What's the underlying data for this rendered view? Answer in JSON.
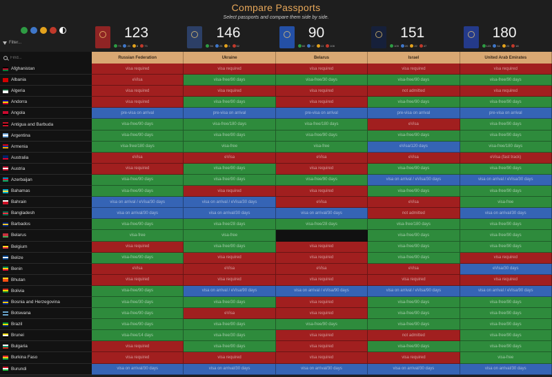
{
  "header": {
    "title": "Compare Passports",
    "subtitle": "Select passports and compare them side by side."
  },
  "theme_dots": [
    {
      "name": "green-theme-dot",
      "color": "#2e9b43"
    },
    {
      "name": "blue-theme-dot",
      "color": "#3f77c9"
    },
    {
      "name": "orange-theme-dot",
      "color": "#e3a21d"
    },
    {
      "name": "red-theme-dot",
      "color": "#c0392b"
    }
  ],
  "filter": {
    "label": "Filter..."
  },
  "find": {
    "placeholder": "Find..."
  },
  "colors": {
    "visa-free": "#2e8b3c",
    "visa-required": "#a11f1f",
    "visa-on-arrival": "#3564b5",
    "self": "#111111"
  },
  "passports": [
    {
      "country": "Russian Federation",
      "score": "123",
      "book_color": "#8f2424",
      "stats": [
        "73",
        "20",
        "8",
        "73"
      ]
    },
    {
      "country": "Ukraine",
      "score": "146",
      "book_color": "#2c3f66",
      "stats": [
        "94",
        "25",
        "5",
        "52"
      ]
    },
    {
      "country": "Belarus",
      "score": "90",
      "book_color": "#2450a6",
      "stats": [
        "60",
        "17",
        "13",
        "108"
      ]
    },
    {
      "country": "Israel",
      "score": "151",
      "book_color": "#16203a",
      "stats": [
        "109",
        "20",
        "22",
        "47"
      ]
    },
    {
      "country": "United Arab Emirates",
      "score": "180",
      "book_color": "#243a8a",
      "stats": [
        "123",
        "34",
        "23",
        "18"
      ]
    }
  ],
  "rows": [
    {
      "country": "Afghanistan",
      "flag": [
        "#000000",
        "#c8102e",
        "#007a36"
      ],
      "cells": [
        [
          "visa required",
          "r"
        ],
        [
          "visa required",
          "r"
        ],
        [
          "visa required",
          "r"
        ],
        [
          "visa required",
          "r"
        ],
        [
          "visa required",
          "r"
        ]
      ]
    },
    {
      "country": "Albania",
      "flag": [
        "#d20000",
        "#d20000",
        "#d20000"
      ],
      "cells": [
        [
          "eVisa",
          "r"
        ],
        [
          "visa-free/90 days",
          "g"
        ],
        [
          "visa-free/30 days",
          "g"
        ],
        [
          "visa-free/90 days",
          "g"
        ],
        [
          "visa-free/90 days",
          "g"
        ]
      ]
    },
    {
      "country": "Algeria",
      "flag": [
        "#006233",
        "#ffffff",
        "#ffffff"
      ],
      "cells": [
        [
          "visa required",
          "r"
        ],
        [
          "visa required",
          "r"
        ],
        [
          "visa required",
          "r"
        ],
        [
          "not admitted",
          "r"
        ],
        [
          "visa required",
          "r"
        ]
      ]
    },
    {
      "country": "Andorra",
      "flag": [
        "#10069f",
        "#fedd00",
        "#d50032"
      ],
      "cells": [
        [
          "visa required",
          "r"
        ],
        [
          "visa-free/90 days",
          "g"
        ],
        [
          "visa required",
          "r"
        ],
        [
          "visa-free/90 days",
          "g"
        ],
        [
          "visa-free/90 days",
          "g"
        ]
      ]
    },
    {
      "country": "Angola",
      "flag": [
        "#cc092f",
        "#cc092f",
        "#000000"
      ],
      "cells": [
        [
          "pre-visa on arrival",
          "b"
        ],
        [
          "pre-visa on arrival",
          "b"
        ],
        [
          "pre-visa on arrival",
          "b"
        ],
        [
          "pre-visa on arrival",
          "b"
        ],
        [
          "pre-visa on arrival",
          "b"
        ]
      ]
    },
    {
      "country": "Antigua and Barbuda",
      "flag": [
        "#ce1126",
        "#000000",
        "#ce1126"
      ],
      "cells": [
        [
          "visa-free/90 days",
          "g"
        ],
        [
          "visa-free/180 days",
          "g"
        ],
        [
          "visa-free/180 days",
          "g"
        ],
        [
          "eVisa",
          "r"
        ],
        [
          "visa-free/90 days",
          "g"
        ]
      ]
    },
    {
      "country": "Argentina",
      "flag": [
        "#74acdf",
        "#ffffff",
        "#74acdf"
      ],
      "cells": [
        [
          "visa-free/90 days",
          "g"
        ],
        [
          "visa-free/90 days",
          "g"
        ],
        [
          "visa-free/90 days",
          "g"
        ],
        [
          "visa-free/90 days",
          "g"
        ],
        [
          "visa-free/90 days",
          "g"
        ]
      ]
    },
    {
      "country": "Armenia",
      "flag": [
        "#d90012",
        "#0033a0",
        "#f2a800"
      ],
      "cells": [
        [
          "visa-free/180 days",
          "g"
        ],
        [
          "visa-free",
          "g"
        ],
        [
          "visa-free",
          "g"
        ],
        [
          "eVisa/120 days",
          "b"
        ],
        [
          "visa-free/180 days",
          "g"
        ]
      ]
    },
    {
      "country": "Australia",
      "flag": [
        "#012169",
        "#012169",
        "#e4002b"
      ],
      "cells": [
        [
          "eVisa",
          "r"
        ],
        [
          "eVisa",
          "r"
        ],
        [
          "eVisa",
          "r"
        ],
        [
          "eVisa",
          "r"
        ],
        [
          "eVisa (fast track)",
          "r"
        ]
      ]
    },
    {
      "country": "Austria",
      "flag": [
        "#c8102e",
        "#ffffff",
        "#c8102e"
      ],
      "cells": [
        [
          "visa required",
          "r"
        ],
        [
          "visa-free/90 days",
          "g"
        ],
        [
          "visa required",
          "r"
        ],
        [
          "visa-free/90 days",
          "g"
        ],
        [
          "visa-free/90 days",
          "g"
        ]
      ]
    },
    {
      "country": "Azerbaijan",
      "flag": [
        "#0092bc",
        "#e4002b",
        "#00af66"
      ],
      "cells": [
        [
          "visa-free/90 days",
          "g"
        ],
        [
          "visa-free/90 days",
          "g"
        ],
        [
          "visa-free/90 days",
          "g"
        ],
        [
          "visa on arrival / eVisa/30 days",
          "b"
        ],
        [
          "visa on arrival / eVisa/30 days",
          "b"
        ]
      ]
    },
    {
      "country": "Bahamas",
      "flag": [
        "#00abc9",
        "#fae042",
        "#00abc9"
      ],
      "cells": [
        [
          "visa-free/90 days",
          "g"
        ],
        [
          "visa required",
          "r"
        ],
        [
          "visa required",
          "r"
        ],
        [
          "visa-free/90 days",
          "g"
        ],
        [
          "visa-free/90 days",
          "g"
        ]
      ]
    },
    {
      "country": "Bahrain",
      "flag": [
        "#ffffff",
        "#ce1126",
        "#ce1126"
      ],
      "cells": [
        [
          "visa on arrival / eVisa/30 days",
          "b"
        ],
        [
          "visa on arrival / eVisa/30 days",
          "b"
        ],
        [
          "eVisa",
          "r"
        ],
        [
          "eVisa",
          "r"
        ],
        [
          "visa-free",
          "g"
        ]
      ]
    },
    {
      "country": "Bangladesh",
      "flag": [
        "#006a4e",
        "#f42a41",
        "#006a4e"
      ],
      "cells": [
        [
          "visa on arrival/30 days",
          "b"
        ],
        [
          "visa on arrival/30 days",
          "b"
        ],
        [
          "visa on arrival/30 days",
          "b"
        ],
        [
          "not admitted",
          "r"
        ],
        [
          "visa on arrival/30 days",
          "b"
        ]
      ]
    },
    {
      "country": "Barbados",
      "flag": [
        "#00267f",
        "#ffc726",
        "#00267f"
      ],
      "cells": [
        [
          "visa-free/90 days",
          "g"
        ],
        [
          "visa-free/28 days",
          "g"
        ],
        [
          "visa-free/28 days",
          "g"
        ],
        [
          "visa-free/180 days",
          "g"
        ],
        [
          "visa-free/90 days",
          "g"
        ]
      ]
    },
    {
      "country": "Belarus",
      "flag": [
        "#c8313e",
        "#c8313e",
        "#4aa657"
      ],
      "cells": [
        [
          "visa-free",
          "g"
        ],
        [
          "visa-free",
          "g"
        ],
        [
          "",
          "s"
        ],
        [
          "visa-free/90 days",
          "g"
        ],
        [
          "visa-free/90 days",
          "g"
        ]
      ]
    },
    {
      "country": "Belgium",
      "flag": [
        "#000000",
        "#fdda24",
        "#ef3340"
      ],
      "cells": [
        [
          "visa required",
          "r"
        ],
        [
          "visa-free/90 days",
          "g"
        ],
        [
          "visa required",
          "r"
        ],
        [
          "visa-free/90 days",
          "g"
        ],
        [
          "visa-free/90 days",
          "g"
        ]
      ]
    },
    {
      "country": "Belize",
      "flag": [
        "#003f87",
        "#ffffff",
        "#003f87"
      ],
      "cells": [
        [
          "visa-free/90 days",
          "g"
        ],
        [
          "visa required",
          "r"
        ],
        [
          "visa required",
          "r"
        ],
        [
          "visa-free/90 days",
          "g"
        ],
        [
          "visa required",
          "r"
        ]
      ]
    },
    {
      "country": "Benin",
      "flag": [
        "#008751",
        "#fcd116",
        "#e8112d"
      ],
      "cells": [
        [
          "eVisa",
          "r"
        ],
        [
          "eVisa",
          "r"
        ],
        [
          "eVisa",
          "r"
        ],
        [
          "eVisa",
          "r"
        ],
        [
          "eVisa/30 days",
          "b"
        ]
      ]
    },
    {
      "country": "Bhutan",
      "flag": [
        "#ffd520",
        "#ff4e12",
        "#ff4e12"
      ],
      "cells": [
        [
          "visa required",
          "r"
        ],
        [
          "visa required",
          "r"
        ],
        [
          "visa required",
          "r"
        ],
        [
          "visa required",
          "r"
        ],
        [
          "visa required",
          "r"
        ]
      ]
    },
    {
      "country": "Bolivia",
      "flag": [
        "#d52b1e",
        "#f9e300",
        "#007934"
      ],
      "cells": [
        [
          "visa-free/90 days",
          "g"
        ],
        [
          "visa on arrival / eVisa/90 days",
          "b"
        ],
        [
          "visa on arrival / eVisa/90 days",
          "b"
        ],
        [
          "visa on arrival / eVisa/90 days",
          "b"
        ],
        [
          "visa on arrival / eVisa/90 days",
          "b"
        ]
      ]
    },
    {
      "country": "Bosnia and Herzegovina",
      "flag": [
        "#002395",
        "#fecb00",
        "#002395"
      ],
      "cells": [
        [
          "visa-free/30 days",
          "g"
        ],
        [
          "visa-free/30 days",
          "g"
        ],
        [
          "visa required",
          "r"
        ],
        [
          "visa-free/90 days",
          "g"
        ],
        [
          "visa-free/90 days",
          "g"
        ]
      ]
    },
    {
      "country": "Botswana",
      "flag": [
        "#6da9d2",
        "#000000",
        "#6da9d2"
      ],
      "cells": [
        [
          "visa-free/90 days",
          "g"
        ],
        [
          "eVisa",
          "r"
        ],
        [
          "visa required",
          "r"
        ],
        [
          "visa-free/90 days",
          "g"
        ],
        [
          "visa-free/90 days",
          "g"
        ]
      ]
    },
    {
      "country": "Brazil",
      "flag": [
        "#009c3b",
        "#ffdf00",
        "#002776"
      ],
      "cells": [
        [
          "visa-free/90 days",
          "g"
        ],
        [
          "visa-free/90 days",
          "g"
        ],
        [
          "visa-free/90 days",
          "g"
        ],
        [
          "visa-free/90 days",
          "g"
        ],
        [
          "visa-free/90 days",
          "g"
        ]
      ]
    },
    {
      "country": "Brunei",
      "flag": [
        "#f7e017",
        "#ffffff",
        "#000000"
      ],
      "cells": [
        [
          "visa-free/14 days",
          "g"
        ],
        [
          "visa-free/30 days",
          "g"
        ],
        [
          "visa required",
          "r"
        ],
        [
          "not admitted",
          "r"
        ],
        [
          "visa-free/90 days",
          "g"
        ]
      ]
    },
    {
      "country": "Bulgaria",
      "flag": [
        "#ffffff",
        "#00966e",
        "#d62612"
      ],
      "cells": [
        [
          "visa required",
          "r"
        ],
        [
          "visa-free/90 days",
          "g"
        ],
        [
          "visa required",
          "r"
        ],
        [
          "visa-free/90 days",
          "g"
        ],
        [
          "visa-free/90 days",
          "g"
        ]
      ]
    },
    {
      "country": "Burkina Faso",
      "flag": [
        "#ef2b2d",
        "#fcd116",
        "#009e49"
      ],
      "cells": [
        [
          "visa required",
          "r"
        ],
        [
          "visa required",
          "r"
        ],
        [
          "visa required",
          "r"
        ],
        [
          "visa required",
          "r"
        ],
        [
          "visa-free",
          "g"
        ]
      ]
    },
    {
      "country": "Burundi",
      "flag": [
        "#ce1126",
        "#ffffff",
        "#1eb53a"
      ],
      "cells": [
        [
          "visa on arrival/30 days",
          "b"
        ],
        [
          "visa on arrival/30 days",
          "b"
        ],
        [
          "visa on arrival/30 days",
          "b"
        ],
        [
          "visa on arrival/30 days",
          "b"
        ],
        [
          "visa on arrival/30 days",
          "b"
        ]
      ]
    }
  ]
}
